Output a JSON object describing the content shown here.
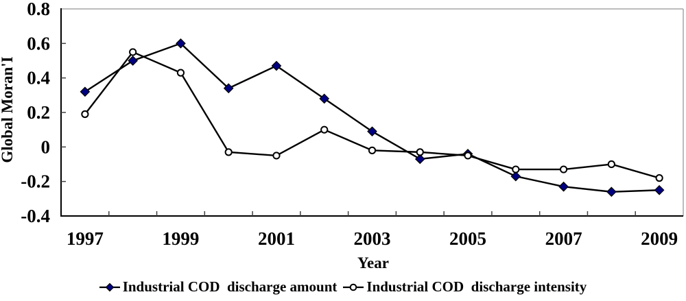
{
  "chart_data": {
    "type": "line",
    "title": "",
    "xlabel": "Year",
    "ylabel": "Global Moran'I",
    "x": [
      1997,
      1998,
      1999,
      2000,
      2001,
      2002,
      2003,
      2004,
      2005,
      2006,
      2007,
      2008,
      2009
    ],
    "xtick_labels": [
      "1997",
      "1999",
      "2001",
      "2003",
      "2005",
      "2007",
      "2009"
    ],
    "yticks": [
      "0.8",
      "0.6",
      "0.4",
      "0.2",
      "0",
      "-0.2",
      "-0.4"
    ],
    "ylim": [
      -0.4,
      0.8
    ],
    "grid": false,
    "legend_position": "bottom",
    "colors": {
      "line": "#000000",
      "diamond_fill": "#000080",
      "circle_fill": "#ffffff",
      "plot_border": "#a6a6a6",
      "tick": "#404040",
      "text": "#000000"
    },
    "series": [
      {
        "name": "Industrial COD  discharge amount",
        "marker": "diamond",
        "marker_color": "#000080",
        "line_color": "#000000",
        "values": [
          0.32,
          0.5,
          0.6,
          0.34,
          0.47,
          0.28,
          0.09,
          -0.07,
          -0.04,
          -0.17,
          -0.23,
          -0.26,
          -0.25
        ]
      },
      {
        "name": "Industrial COD  discharge intensity",
        "marker": "circle",
        "marker_color": "#ffffff",
        "line_color": "#000000",
        "values": [
          0.19,
          0.55,
          0.43,
          -0.03,
          -0.05,
          0.1,
          -0.02,
          -0.03,
          -0.05,
          -0.13,
          -0.13,
          -0.1,
          -0.18
        ]
      }
    ]
  }
}
